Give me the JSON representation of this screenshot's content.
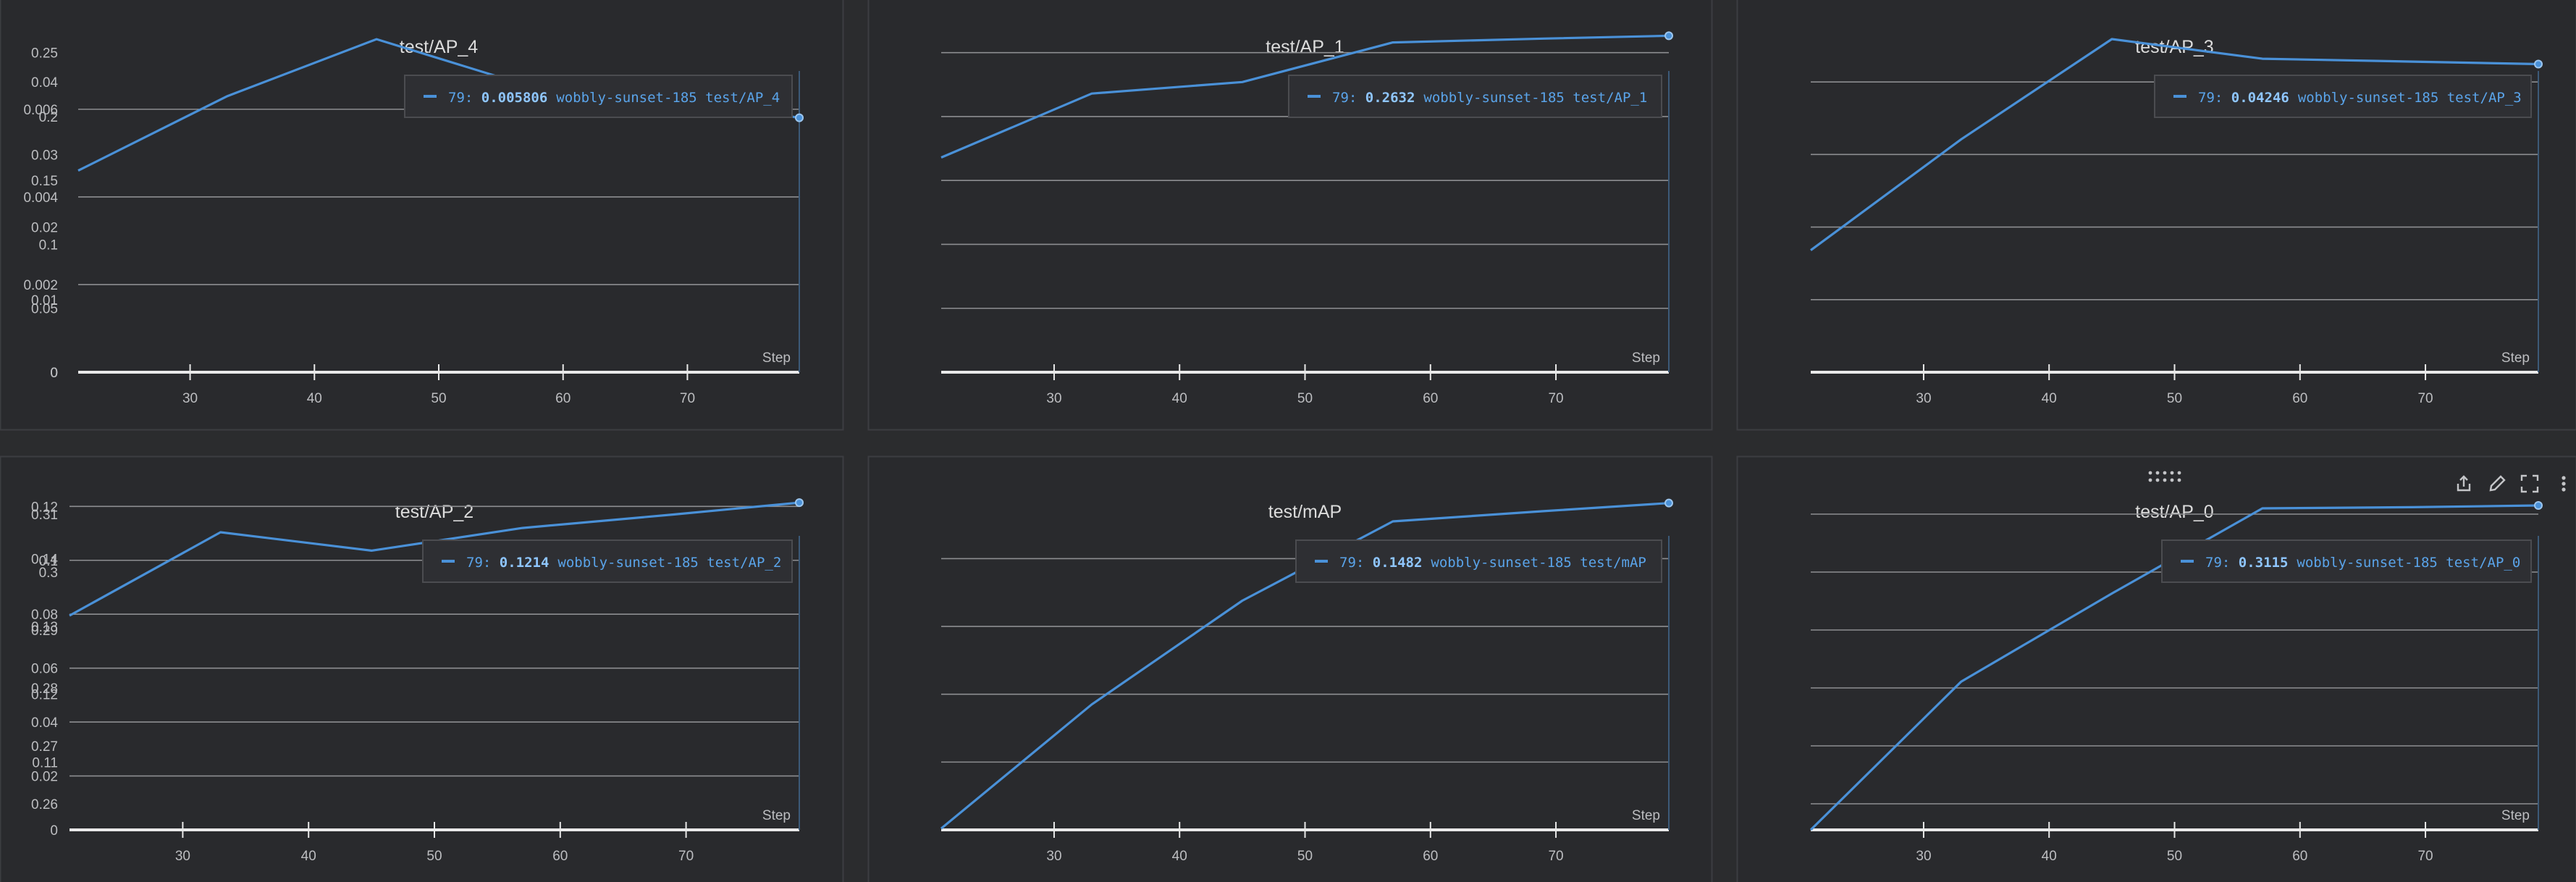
{
  "colors": {
    "background": "#2b2c2e",
    "panel": "#292a2d",
    "panel_border": "#3c3d41",
    "grid": "#8d8e91",
    "axis": "#e9e9e9",
    "text": "#bdbec1",
    "title": "#dcdcdc",
    "series": "#4a91d8",
    "tooltip_bg": "#2e2f33",
    "tooltip_border": "#4b4c50",
    "tooltip_text": "#5aa4ea",
    "icons": "#c4c5c8"
  },
  "panel_toolbar": {
    "icons": [
      "drag-handle-icon",
      "share-icon",
      "edit-icon",
      "fullscreen-icon",
      "more-icon"
    ]
  },
  "chart_data": [
    {
      "type": "line",
      "title": "test/AP_4",
      "xlabel": "Step",
      "xlim": [
        21,
        79
      ],
      "ylim": [
        0,
        0.0077
      ],
      "x_ticks": [
        "30",
        "40",
        "50",
        "60",
        "70"
      ],
      "y_ticks": [
        "0",
        "0.002",
        "0.004",
        "0.006"
      ],
      "grid": true,
      "series": [
        {
          "name": "wobbly-sunset-185 test/AP_4",
          "x": [
            21,
            33,
            45,
            57,
            69,
            79
          ],
          "y": [
            0.0046,
            0.0063,
            0.0076,
            0.00655,
            0.0062,
            0.005806
          ]
        }
      ],
      "tooltip": {
        "step": "79:",
        "value": "0.005806",
        "label": "wobbly-sunset-185 test/AP_4"
      }
    },
    {
      "type": "line",
      "title": "test/AP_1",
      "xlabel": "Step",
      "xlim": [
        21,
        79
      ],
      "ylim": [
        0,
        0.264
      ],
      "x_ticks": [
        "30",
        "40",
        "50",
        "60",
        "70"
      ],
      "y_ticks": [
        "0",
        "0.05",
        "0.1",
        "0.15",
        "0.2",
        "0.25"
      ],
      "grid": true,
      "series": [
        {
          "name": "wobbly-sunset-185 test/AP_1",
          "x": [
            21,
            33,
            45,
            57,
            69,
            79
          ],
          "y": [
            0.168,
            0.218,
            0.227,
            0.258,
            0.261,
            0.2632
          ]
        }
      ],
      "tooltip": {
        "step": "79:",
        "value": "0.2632",
        "label": "wobbly-sunset-185 test/AP_1"
      }
    },
    {
      "type": "line",
      "title": "test/AP_3",
      "xlabel": "Step",
      "xlim": [
        21,
        79
      ],
      "ylim": [
        0,
        0.0465
      ],
      "x_ticks": [
        "30",
        "40",
        "50",
        "60",
        "70"
      ],
      "y_ticks": [
        "0",
        "0.01",
        "0.02",
        "0.03",
        "0.04"
      ],
      "grid": true,
      "series": [
        {
          "name": "wobbly-sunset-185 test/AP_3",
          "x": [
            21,
            33,
            45,
            57,
            69,
            79
          ],
          "y": [
            0.0168,
            0.0321,
            0.0459,
            0.0432,
            0.0428,
            0.04246
          ]
        }
      ],
      "tooltip": {
        "step": "79:",
        "value": "0.04246",
        "label": "wobbly-sunset-185 test/AP_3"
      }
    },
    {
      "type": "line",
      "title": "test/AP_2",
      "xlabel": "Step",
      "xlim": [
        21,
        79
      ],
      "ylim": [
        0,
        0.1225
      ],
      "x_ticks": [
        "30",
        "40",
        "50",
        "60",
        "70"
      ],
      "y_ticks": [
        "0",
        "0.02",
        "0.04",
        "0.06",
        "0.08",
        "0.1",
        "0.12"
      ],
      "grid": true,
      "series": [
        {
          "name": "wobbly-sunset-185 test/AP_2",
          "x": [
            21,
            33,
            45,
            57,
            69,
            79
          ],
          "y": [
            0.0795,
            0.1104,
            0.1036,
            0.112,
            0.117,
            0.1214
          ]
        }
      ],
      "tooltip": {
        "step": "79:",
        "value": "0.1214",
        "label": "wobbly-sunset-185 test/AP_2"
      }
    },
    {
      "type": "line",
      "title": "test/mAP",
      "xlabel": "Step",
      "xlim": [
        21,
        79
      ],
      "ylim": [
        0.1,
        0.1487
      ],
      "x_ticks": [
        "30",
        "40",
        "50",
        "60",
        "70"
      ],
      "y_ticks": [
        "0.11",
        "0.12",
        "0.13",
        "0.14"
      ],
      "grid": true,
      "series": [
        {
          "name": "wobbly-sunset-185 test/mAP",
          "x": [
            21,
            33,
            45,
            57,
            69,
            79
          ],
          "y": [
            0.1002,
            0.1185,
            0.1338,
            0.1455,
            0.147,
            0.1482
          ]
        }
      ],
      "tooltip": {
        "step": "79:",
        "value": "0.1482",
        "label": "wobbly-sunset-185 test/mAP"
      }
    },
    {
      "type": "line",
      "title": "test/AP_0",
      "xlabel": "Step",
      "xlim": [
        21,
        79
      ],
      "ylim": [
        0.2555,
        0.3125
      ],
      "x_ticks": [
        "30",
        "40",
        "50",
        "60",
        "70"
      ],
      "y_ticks": [
        "0.26",
        "0.27",
        "0.28",
        "0.29",
        "0.3",
        "0.31"
      ],
      "grid": true,
      "series": [
        {
          "name": "wobbly-sunset-185 test/AP_0",
          "x": [
            21,
            33,
            45,
            57,
            69,
            79
          ],
          "y": [
            0.2555,
            0.2811,
            0.2963,
            0.311,
            0.3112,
            0.3115
          ]
        }
      ],
      "tooltip": {
        "step": "79:",
        "value": "0.3115",
        "label": "wobbly-sunset-185 test/AP_0"
      }
    }
  ]
}
